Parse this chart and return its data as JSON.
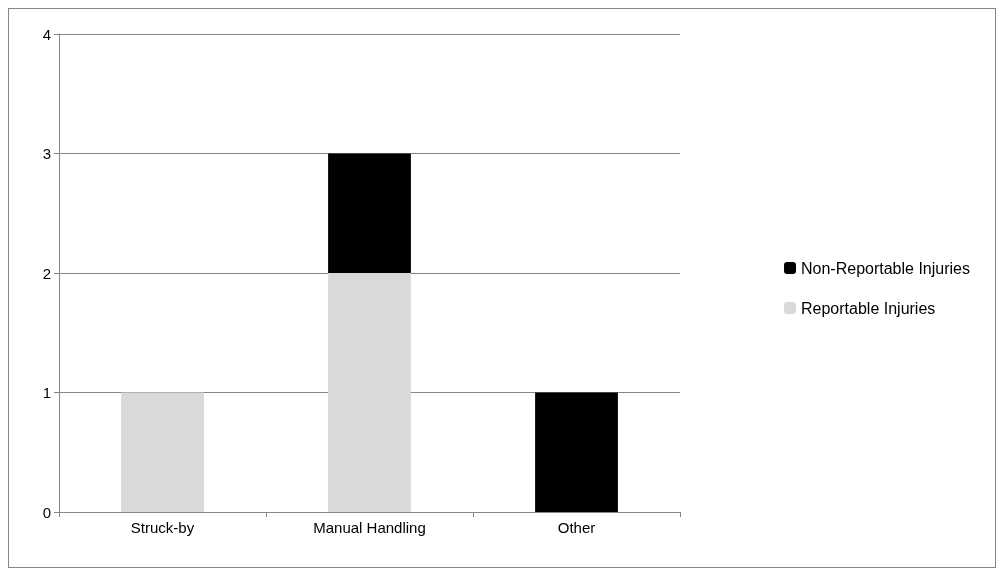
{
  "chart_data": {
    "type": "bar",
    "stacked": true,
    "categories": [
      "Struck-by",
      "Manual Handling",
      "Other"
    ],
    "series": [
      {
        "name": "Reportable Injuries",
        "color": "#d9d9d9",
        "values": [
          1,
          2,
          0
        ]
      },
      {
        "name": "Non-Reportable Injuries",
        "color": "#000000",
        "values": [
          0,
          1,
          1
        ]
      }
    ],
    "ylim": [
      0,
      4
    ],
    "yticks": [
      0,
      1,
      2,
      3,
      4
    ],
    "grid": "y",
    "legend": "right"
  }
}
